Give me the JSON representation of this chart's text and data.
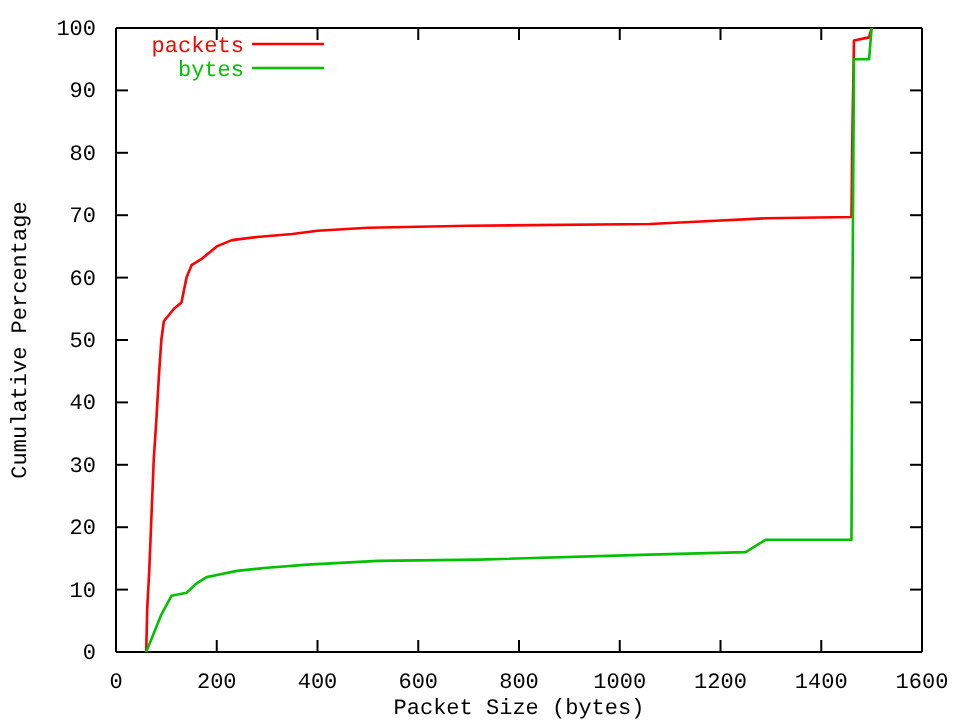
{
  "chart_data": {
    "type": "line",
    "xlabel": "Packet Size (bytes)",
    "ylabel": "Cumulative Percentage",
    "xlim": [
      0,
      1600
    ],
    "ylim": [
      0,
      100
    ],
    "xticks": [
      0,
      200,
      400,
      600,
      800,
      1000,
      1200,
      1400,
      1600
    ],
    "yticks": [
      0,
      10,
      20,
      30,
      40,
      50,
      60,
      70,
      80,
      90,
      100
    ],
    "legend": "top left",
    "grid": false,
    "series": [
      {
        "name": "packets",
        "color": "#ff0000",
        "x": [
          60,
          62,
          66,
          70,
          75,
          80,
          85,
          90,
          95,
          105,
          115,
          130,
          140,
          150,
          170,
          185,
          200,
          230,
          280,
          350,
          400,
          500,
          700,
          1060,
          1140,
          1290,
          1460,
          1462,
          1465,
          1495,
          1500
        ],
        "values": [
          0,
          7,
          13,
          21,
          31,
          37,
          44,
          50,
          53,
          54,
          55,
          56,
          60,
          62,
          63,
          64,
          65,
          66,
          66.5,
          67,
          67.5,
          68,
          68.3,
          68.6,
          68.9,
          69.5,
          69.7,
          84,
          98,
          98.5,
          100
        ]
      },
      {
        "name": "bytes",
        "color": "#00c000",
        "x": [
          60,
          70,
          80,
          90,
          110,
          140,
          160,
          180,
          210,
          240,
          300,
          380,
          520,
          720,
          1060,
          1250,
          1290,
          1460,
          1462,
          1465,
          1495,
          1500
        ],
        "values": [
          0,
          2,
          4,
          6,
          9,
          9.5,
          11,
          12,
          12.5,
          13,
          13.5,
          14,
          14.6,
          14.8,
          15.6,
          16,
          18,
          18,
          57,
          95,
          95,
          100
        ]
      }
    ]
  }
}
